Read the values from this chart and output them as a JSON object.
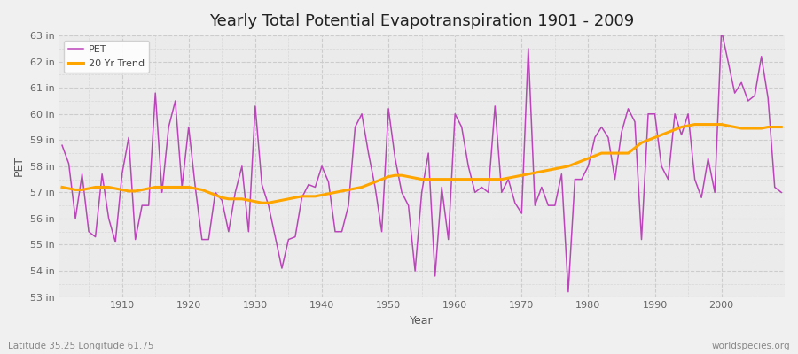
{
  "title": "Yearly Total Potential Evapotranspiration 1901 - 2009",
  "xlabel": "Year",
  "ylabel": "PET",
  "footer_left": "Latitude 35.25 Longitude 61.75",
  "footer_right": "worldspecies.org",
  "pet_color": "#bb44bb",
  "trend_color": "#ffa500",
  "background_color": "#f0f0f0",
  "plot_bg_color": "#ebebeb",
  "ylim": [
    53,
    63
  ],
  "yticks": [
    53,
    54,
    55,
    56,
    57,
    58,
    59,
    60,
    61,
    62,
    63
  ],
  "ytick_labels": [
    "53 in",
    "54 in",
    "55 in",
    "56 in",
    "57 in",
    "58 in",
    "59 in",
    "60 in",
    "61 in",
    "62 in",
    "63 in"
  ],
  "xlim": [
    1901,
    2009
  ],
  "xticks": [
    1910,
    1920,
    1930,
    1940,
    1950,
    1960,
    1970,
    1980,
    1990,
    2000
  ],
  "years": [
    1901,
    1902,
    1903,
    1904,
    1905,
    1906,
    1907,
    1908,
    1909,
    1910,
    1911,
    1912,
    1913,
    1914,
    1915,
    1916,
    1917,
    1918,
    1919,
    1920,
    1921,
    1922,
    1923,
    1924,
    1925,
    1926,
    1927,
    1928,
    1929,
    1930,
    1931,
    1932,
    1933,
    1934,
    1935,
    1936,
    1937,
    1938,
    1939,
    1940,
    1941,
    1942,
    1943,
    1944,
    1945,
    1946,
    1947,
    1948,
    1949,
    1950,
    1951,
    1952,
    1953,
    1954,
    1955,
    1956,
    1957,
    1958,
    1959,
    1960,
    1961,
    1962,
    1963,
    1964,
    1965,
    1966,
    1967,
    1968,
    1969,
    1970,
    1971,
    1972,
    1973,
    1974,
    1975,
    1976,
    1977,
    1978,
    1979,
    1980,
    1981,
    1982,
    1983,
    1984,
    1985,
    1986,
    1987,
    1988,
    1989,
    1990,
    1991,
    1992,
    1993,
    1994,
    1995,
    1996,
    1997,
    1998,
    1999,
    2000,
    2001,
    2002,
    2003,
    2004,
    2005,
    2006,
    2007,
    2008,
    2009
  ],
  "pet_values": [
    58.8,
    58.1,
    56.0,
    57.7,
    55.5,
    55.3,
    57.7,
    56.0,
    55.1,
    57.7,
    59.1,
    55.2,
    56.5,
    56.5,
    60.8,
    57.0,
    59.5,
    60.5,
    57.2,
    59.5,
    57.2,
    55.2,
    55.2,
    57.0,
    56.7,
    55.5,
    57.0,
    58.0,
    55.5,
    60.3,
    57.3,
    56.5,
    55.3,
    54.1,
    55.2,
    55.3,
    56.8,
    57.3,
    57.2,
    58.0,
    57.4,
    55.5,
    55.5,
    56.5,
    59.5,
    60.0,
    58.5,
    57.2,
    55.5,
    60.2,
    58.3,
    57.0,
    56.5,
    54.0,
    57.0,
    58.5,
    53.8,
    57.2,
    55.2,
    60.0,
    59.5,
    58.0,
    57.0,
    57.2,
    57.0,
    60.3,
    57.0,
    57.5,
    56.6,
    56.2,
    62.5,
    56.5,
    57.2,
    56.5,
    56.5,
    57.7,
    53.2,
    57.5,
    57.5,
    58.0,
    59.1,
    59.5,
    59.1,
    57.5,
    59.3,
    60.2,
    59.7,
    55.2,
    60.0,
    60.0,
    58.0,
    57.5,
    60.0,
    59.2,
    60.0,
    57.5,
    56.8,
    58.3,
    57.0,
    63.2,
    62.0,
    60.8,
    61.2,
    60.5,
    60.7,
    62.2,
    60.6,
    57.2,
    57.0
  ],
  "trend_values": [
    57.2,
    57.15,
    57.1,
    57.1,
    57.15,
    57.2,
    57.2,
    57.2,
    57.15,
    57.1,
    57.05,
    57.05,
    57.1,
    57.15,
    57.2,
    57.2,
    57.2,
    57.2,
    57.2,
    57.2,
    57.15,
    57.1,
    57.0,
    56.9,
    56.8,
    56.75,
    56.75,
    56.75,
    56.7,
    56.65,
    56.6,
    56.6,
    56.65,
    56.7,
    56.75,
    56.8,
    56.85,
    56.85,
    56.85,
    56.9,
    56.95,
    57.0,
    57.05,
    57.1,
    57.15,
    57.2,
    57.3,
    57.4,
    57.5,
    57.6,
    57.65,
    57.65,
    57.6,
    57.55,
    57.5,
    57.5,
    57.5,
    57.5,
    57.5,
    57.5,
    57.5,
    57.5,
    57.5,
    57.5,
    57.5,
    57.5,
    57.5,
    57.55,
    57.6,
    57.65,
    57.7,
    57.75,
    57.8,
    57.85,
    57.9,
    57.95,
    58.0,
    58.1,
    58.2,
    58.3,
    58.4,
    58.5,
    58.5,
    58.5,
    58.5,
    58.5,
    58.7,
    58.9,
    59.0,
    59.1,
    59.2,
    59.3,
    59.4,
    59.5,
    59.55,
    59.6,
    59.6,
    59.6,
    59.6,
    59.6,
    59.55,
    59.5,
    59.45,
    59.45,
    59.45,
    59.45,
    59.5,
    59.5,
    59.5
  ]
}
